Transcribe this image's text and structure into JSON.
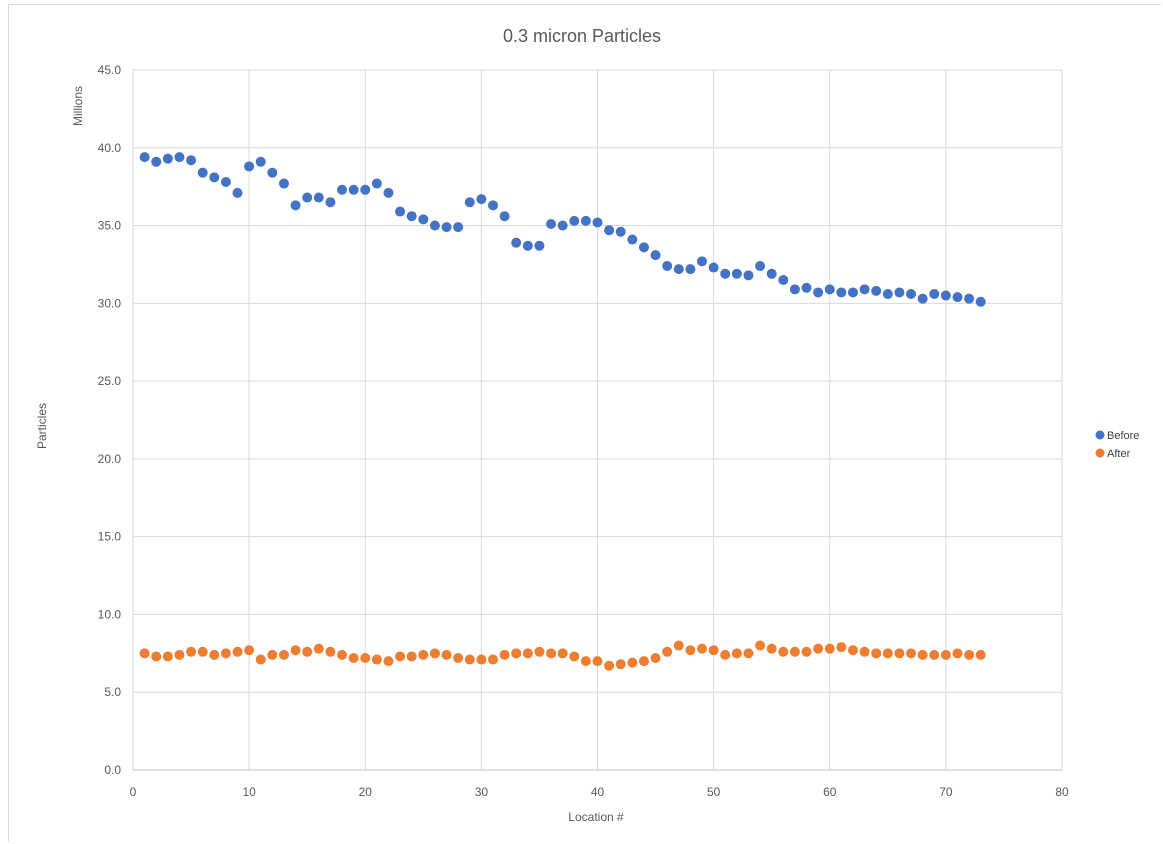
{
  "chart_data": {
    "type": "scatter",
    "title": "0.3 micron Particles",
    "xlabel": "Location #",
    "ylabel": "Particles",
    "y_display_units": "Millions",
    "xlim": [
      0,
      80
    ],
    "ylim": [
      0,
      45
    ],
    "x_ticks": [
      0,
      10,
      20,
      30,
      40,
      50,
      60,
      70,
      80
    ],
    "y_ticks": [
      "0.0",
      "5.0",
      "10.0",
      "15.0",
      "20.0",
      "25.0",
      "30.0",
      "35.0",
      "40.0",
      "45.0"
    ],
    "grid": true,
    "legend_position": "right",
    "series": [
      {
        "name": "Before",
        "color": "#4472C4",
        "x": [
          1,
          2,
          3,
          4,
          5,
          6,
          7,
          8,
          9,
          10,
          11,
          12,
          13,
          14,
          15,
          16,
          17,
          18,
          19,
          20,
          21,
          22,
          23,
          24,
          25,
          26,
          27,
          28,
          29,
          30,
          31,
          32,
          33,
          34,
          35,
          36,
          37,
          38,
          39,
          40,
          41,
          42,
          43,
          44,
          45,
          46,
          47,
          48,
          49,
          50,
          51,
          52,
          53,
          54,
          55,
          56,
          57,
          58,
          59,
          60,
          61,
          62,
          63,
          64,
          65,
          66,
          67,
          68,
          69,
          70,
          71,
          72,
          73
        ],
        "y": [
          39.4,
          39.1,
          39.3,
          39.4,
          39.2,
          38.4,
          38.1,
          37.8,
          37.1,
          38.8,
          39.1,
          38.4,
          37.7,
          36.3,
          36.8,
          36.8,
          36.5,
          37.3,
          37.3,
          37.3,
          37.7,
          37.1,
          35.9,
          35.6,
          35.4,
          35.0,
          34.9,
          34.9,
          36.5,
          36.7,
          36.3,
          35.6,
          33.9,
          33.7,
          33.7,
          35.1,
          35.0,
          35.3,
          35.3,
          35.2,
          34.7,
          34.6,
          34.1,
          33.6,
          33.1,
          32.4,
          32.2,
          32.2,
          32.7,
          32.3,
          31.9,
          31.9,
          31.8,
          32.4,
          31.9,
          31.5,
          30.9,
          31.0,
          30.7,
          30.9,
          30.7,
          30.7,
          30.9,
          30.8,
          30.6,
          30.7,
          30.6,
          30.3,
          30.6,
          30.5,
          30.4,
          30.3,
          30.1
        ]
      },
      {
        "name": "After",
        "color": "#ED7D31",
        "x": [
          1,
          2,
          3,
          4,
          5,
          6,
          7,
          8,
          9,
          10,
          11,
          12,
          13,
          14,
          15,
          16,
          17,
          18,
          19,
          20,
          21,
          22,
          23,
          24,
          25,
          26,
          27,
          28,
          29,
          30,
          31,
          32,
          33,
          34,
          35,
          36,
          37,
          38,
          39,
          40,
          41,
          42,
          43,
          44,
          45,
          46,
          47,
          48,
          49,
          50,
          51,
          52,
          53,
          54,
          55,
          56,
          57,
          58,
          59,
          60,
          61,
          62,
          63,
          64,
          65,
          66,
          67,
          68,
          69,
          70,
          71,
          72,
          73
        ],
        "y": [
          7.5,
          7.3,
          7.3,
          7.4,
          7.6,
          7.6,
          7.4,
          7.5,
          7.6,
          7.7,
          7.1,
          7.4,
          7.4,
          7.7,
          7.6,
          7.8,
          7.6,
          7.4,
          7.2,
          7.2,
          7.1,
          7.0,
          7.3,
          7.3,
          7.4,
          7.5,
          7.4,
          7.2,
          7.1,
          7.1,
          7.1,
          7.4,
          7.5,
          7.5,
          7.6,
          7.5,
          7.5,
          7.3,
          7.0,
          7.0,
          6.7,
          6.8,
          6.9,
          7.0,
          7.2,
          7.6,
          8.0,
          7.7,
          7.8,
          7.7,
          7.4,
          7.5,
          7.5,
          8.0,
          7.8,
          7.6,
          7.6,
          7.6,
          7.8,
          7.8,
          7.9,
          7.7,
          7.6,
          7.5,
          7.5,
          7.5,
          7.5,
          7.4,
          7.4,
          7.4,
          7.5,
          7.4,
          7.4
        ]
      }
    ]
  }
}
